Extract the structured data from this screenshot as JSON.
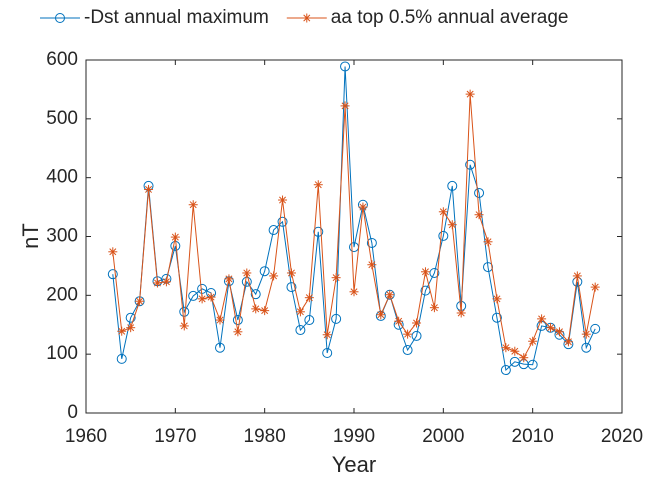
{
  "chart_data": {
    "type": "line",
    "xlabel": "Year",
    "ylabel": "nT",
    "x": [
      1963,
      1964,
      1965,
      1966,
      1967,
      1968,
      1969,
      1970,
      1971,
      1972,
      1973,
      1974,
      1975,
      1976,
      1977,
      1978,
      1979,
      1980,
      1981,
      1982,
      1983,
      1984,
      1985,
      1986,
      1987,
      1988,
      1989,
      1990,
      1991,
      1992,
      1993,
      1994,
      1995,
      1996,
      1997,
      1998,
      1999,
      2000,
      2001,
      2002,
      2003,
      2004,
      2005,
      2006,
      2007,
      2008,
      2009,
      2010,
      2011,
      2012,
      2013,
      2014,
      2015,
      2016,
      2017
    ],
    "series": [
      {
        "name": "-Dst annual maximum",
        "color": "#0072bd",
        "marker": "circle",
        "values": [
          236,
          92,
          162,
          190,
          386,
          224,
          228,
          284,
          172,
          199,
          211,
          204,
          111,
          224,
          158,
          223,
          202,
          241,
          311,
          325,
          214,
          141,
          158,
          308,
          102,
          160,
          589,
          282,
          354,
          289,
          165,
          201,
          150,
          107,
          131,
          208,
          238,
          301,
          386,
          182,
          422,
          374,
          248,
          162,
          73,
          87,
          83,
          82,
          148,
          145,
          133,
          117,
          223,
          111,
          143
        ]
      },
      {
        "name": "aa top 0.5% annual average",
        "color": "#d95319",
        "marker": "asterisk",
        "values": [
          274,
          139,
          145,
          190,
          380,
          221,
          223,
          299,
          148,
          354,
          194,
          197,
          158,
          228,
          138,
          238,
          177,
          174,
          233,
          362,
          238,
          172,
          196,
          388,
          133,
          230,
          522,
          206,
          350,
          252,
          167,
          201,
          156,
          134,
          153,
          240,
          179,
          342,
          320,
          170,
          542,
          337,
          291,
          194,
          111,
          105,
          94,
          122,
          160,
          145,
          138,
          121,
          233,
          134,
          214
        ]
      }
    ],
    "xlim": [
      1960,
      2020
    ],
    "xticks": [
      1960,
      1970,
      1980,
      1990,
      2000,
      2010,
      2020
    ],
    "ylim": [
      0,
      600
    ],
    "yticks": [
      0,
      100,
      200,
      300,
      400,
      500,
      600
    ],
    "legend": "top"
  }
}
